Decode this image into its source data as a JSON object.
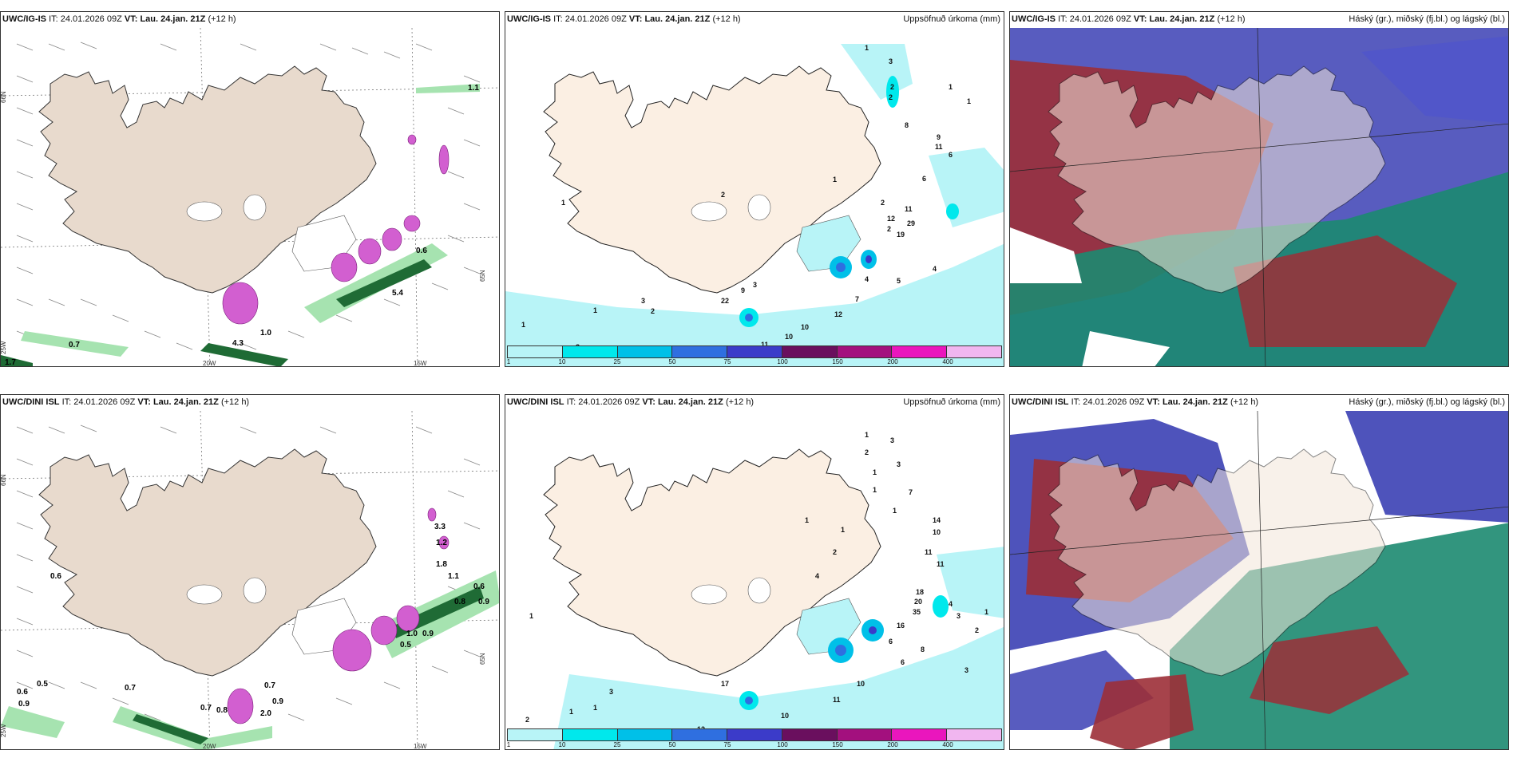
{
  "panels": [
    {
      "header": {
        "model": "UWC/IG-IS",
        "it_label": "IT:",
        "it": "24.01.2026 09Z",
        "vt_label": "VT:",
        "vt": "Lau. 24.jan. 21Z",
        "lead": "(+12 h)",
        "right_title": ""
      },
      "axis_labels": [
        "66N",
        "65N",
        "64N",
        "25W",
        "20W",
        "15W"
      ],
      "values": [
        "1.1",
        "0.6",
        "5.4",
        "1.0",
        "4.3",
        "0.7",
        "1.7"
      ]
    },
    {
      "header": {
        "model": "UWC/IG-IS",
        "it_label": "IT:",
        "it": "24.01.2026 09Z",
        "vt_label": "VT:",
        "vt": "Lau. 24.jan. 21Z",
        "lead": "(+12 h)",
        "right_title": "Uppsöfnuð úrkoma (mm)"
      },
      "values": [
        "1",
        "3",
        "2",
        "2",
        "1",
        "1",
        "8",
        "9",
        "11",
        "6",
        "1",
        "6",
        "2",
        "2",
        "11",
        "12",
        "19",
        "29",
        "4",
        "4",
        "5",
        "2",
        "7",
        "12",
        "10",
        "10",
        "11",
        "9",
        "18",
        "9",
        "3",
        "22",
        "1",
        "1",
        "3",
        "2",
        "3",
        "1",
        "1"
      ],
      "colorbar": {
        "colors": [
          "#b8f4f7",
          "#00e8ec",
          "#00c0e8",
          "#2f6fe0",
          "#3b3bc9",
          "#6a0f5e",
          "#a3107e",
          "#ea16bd",
          "#f1b6f0"
        ],
        "ticks": [
          "1",
          "10",
          "25",
          "50",
          "75",
          "100",
          "150",
          "200",
          "400"
        ]
      }
    },
    {
      "header": {
        "model": "UWC/IG-IS",
        "it_label": "IT:",
        "it": "24.01.2026 09Z",
        "vt_label": "VT:",
        "vt": "Lau. 24.jan. 21Z",
        "lead": "(+12 h)",
        "right_title": "Háský (gr.), miðský (fj.bl.) og lágský (bl.)"
      }
    },
    {
      "header": {
        "model": "UWC/DINI ISL",
        "it_label": "IT:",
        "it": "24.01.2026 09Z",
        "vt_label": "VT:",
        "vt": "Lau. 24.jan. 21Z",
        "lead": "(+12 h)",
        "right_title": ""
      },
      "axis_labels": [
        "66N",
        "65N",
        "64N",
        "25W",
        "20W",
        "15W"
      ],
      "values": [
        "0.6",
        "3.3",
        "1.2",
        "1.8",
        "1.1",
        "0.6",
        "0.8",
        "0.9",
        "1.0",
        "0.9",
        "0.5",
        "0.7",
        "0.6",
        "0.5",
        "0.9",
        "0.7",
        "0.8",
        "0.9",
        "2.0",
        "0.7"
      ]
    },
    {
      "header": {
        "model": "UWC/DINI ISL",
        "it_label": "IT:",
        "it": "24.01.2026 09Z",
        "vt_label": "VT:",
        "vt": "Lau. 24.jan. 21Z",
        "lead": "(+12 h)",
        "right_title": "Uppsöfnuð úrkoma (mm)"
      },
      "values": [
        "1",
        "3",
        "2",
        "1",
        "3",
        "1",
        "7",
        "1",
        "1",
        "1",
        "14",
        "10",
        "11",
        "11",
        "2",
        "4",
        "18",
        "20",
        "35",
        "4",
        "3",
        "16",
        "6",
        "8",
        "6",
        "1",
        "2",
        "3",
        "10",
        "11",
        "10",
        "17",
        "12",
        "2",
        "1",
        "1",
        "3",
        "1"
      ],
      "colorbar": {
        "colors": [
          "#b8f4f7",
          "#00e8ec",
          "#00c0e8",
          "#2f6fe0",
          "#3b3bc9",
          "#6a0f5e",
          "#a3107e",
          "#ea16bd",
          "#f1b6f0"
        ],
        "ticks": [
          "1",
          "10",
          "25",
          "50",
          "75",
          "100",
          "150",
          "200",
          "400"
        ]
      }
    },
    {
      "header": {
        "model": "UWC/DINI ISL",
        "it_label": "IT:",
        "it": "24.01.2026 09Z",
        "vt_label": "VT:",
        "vt": "Lau. 24.jan. 21Z",
        "lead": "(+12 h)",
        "right_title": "Háský (gr.), miðský (fj.bl.) og lágský (bl.)"
      }
    }
  ],
  "colors": {
    "land": "#f3e7da",
    "land_panel1": "#e8dacd",
    "snow_pink": "#d25fd0",
    "precip_green": "#2d8a45",
    "precip_lightgreen": "#a6e3b0",
    "cloud_high": "#9c2f37",
    "cloud_mid": "#3b40b4",
    "cloud_low": "#1c8a70"
  }
}
